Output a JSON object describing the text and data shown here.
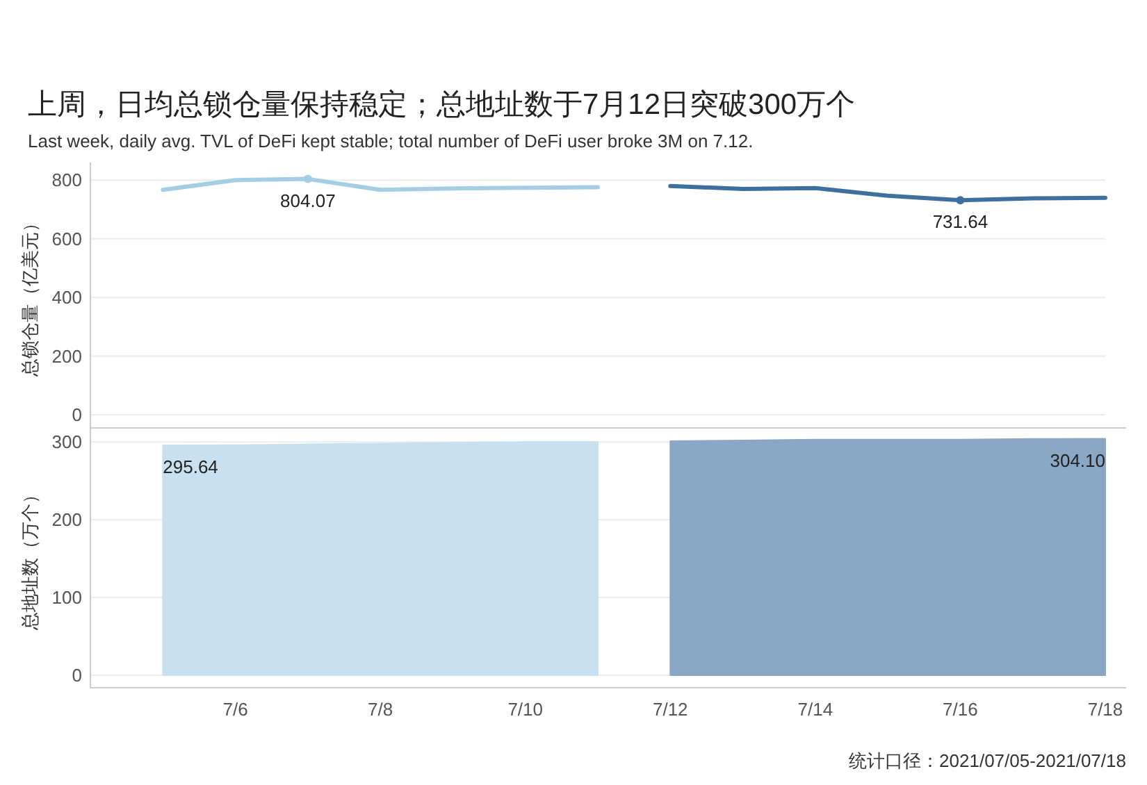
{
  "chart_data": [
    {
      "type": "line",
      "title": "上周，日均总锁仓量保持稳定；总地址数于7月12日突破300万个",
      "subtitle": "Last week, daily avg. TVL of DeFi kept stable; total number of DeFi user broke 3M on 7.12.",
      "ylabel": "总锁仓量（亿美元）",
      "xlim": [
        "--07-04",
        "--07-18"
      ],
      "ylim": [
        -45,
        860
      ],
      "yticks": [
        0,
        200,
        400,
        600,
        800
      ],
      "tick_labels": "y",
      "grid": "y",
      "series": [
        {
          "color": "#a6cde6",
          "x": [
            "--07-05",
            "--07-06",
            "--07-07",
            "--07-08",
            "--07-09",
            "--07-10",
            "--07-11"
          ],
          "values": [
            767,
            800,
            804.07,
            767,
            772,
            774,
            776
          ],
          "value_labels": [
            null,
            null,
            "804.07",
            null,
            null,
            null,
            null
          ]
        },
        {
          "color": "#3f6f9f",
          "x": [
            "--07-12",
            "--07-13",
            "--07-14",
            "--07-15",
            "--07-16",
            "--07-17",
            "--07-18"
          ],
          "values": [
            780,
            770,
            773,
            747,
            731.64,
            738,
            740
          ],
          "value_labels": [
            null,
            null,
            null,
            null,
            "731.64",
            null,
            null
          ]
        }
      ]
    },
    {
      "type": "area",
      "ylabel": "总地址数（万个）",
      "annotations": [
        "统计口径：2021/07/05-2021/07/18"
      ],
      "xlim": [
        "--07-04",
        "--07-18"
      ],
      "ylim": [
        -16,
        318
      ],
      "yticks": [
        0,
        100,
        200,
        300
      ],
      "xticks": [
        {
          "value": "--07-06",
          "label": "7/6"
        },
        {
          "value": "--07-08",
          "label": "7/8"
        },
        {
          "value": "--07-10",
          "label": "7/10"
        },
        {
          "value": "--07-12",
          "label": "7/12"
        },
        {
          "value": "--07-14",
          "label": "7/14"
        },
        {
          "value": "--07-16",
          "label": "7/16"
        },
        {
          "value": "--07-18",
          "label": "7/18"
        }
      ],
      "grid": "y",
      "series": [
        {
          "color": "#c8e0f0",
          "x": [
            "--07-05",
            "--07-06",
            "--07-07",
            "--07-08",
            "--07-09",
            "--07-10",
            "--07-11"
          ],
          "values": [
            295.64,
            296,
            297,
            298,
            299,
            300,
            300
          ],
          "value_labels": [
            "295.64",
            null,
            null,
            null,
            null,
            null,
            null
          ]
        },
        {
          "color": "#8aa8c6",
          "x": [
            "--07-12",
            "--07-13",
            "--07-14",
            "--07-15",
            "--07-16",
            "--07-17",
            "--07-18"
          ],
          "values": [
            301,
            302,
            303,
            303,
            303,
            304,
            304.1
          ],
          "value_labels": [
            null,
            null,
            null,
            null,
            null,
            null,
            "304.10"
          ]
        }
      ]
    }
  ]
}
